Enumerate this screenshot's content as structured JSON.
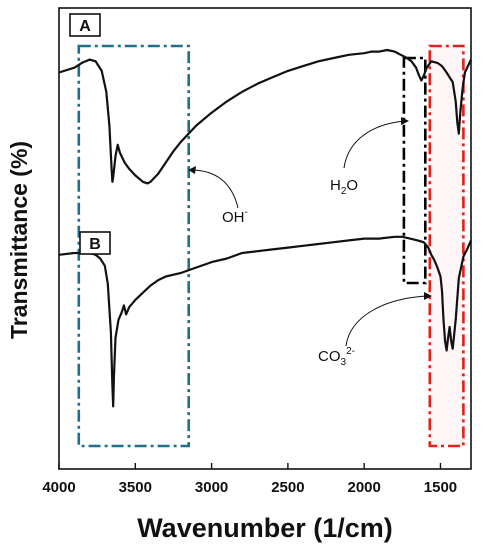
{
  "chart_data": {
    "type": "line",
    "xlabel": "Wavenumber (1/cm)",
    "ylabel": "Transmittance (%)",
    "xlim": [
      4000,
      1300
    ],
    "x_ticks": [
      4000,
      3500,
      3000,
      2500,
      2000,
      1500
    ],
    "y_ticks_shown": false,
    "grid": false,
    "series": [
      {
        "name": "A",
        "x": [
          4000,
          3900,
          3850,
          3800,
          3760,
          3720,
          3690,
          3670,
          3655,
          3650,
          3645,
          3630,
          3615,
          3600,
          3570,
          3540,
          3500,
          3450,
          3420,
          3400,
          3350,
          3300,
          3250,
          3200,
          3100,
          3000,
          2900,
          2800,
          2700,
          2600,
          2500,
          2400,
          2300,
          2200,
          2100,
          2000,
          1950,
          1900,
          1850,
          1800,
          1760,
          1720,
          1690,
          1660,
          1640,
          1625,
          1610,
          1590,
          1560,
          1520,
          1490,
          1460,
          1440,
          1420,
          1400,
          1390,
          1380,
          1370,
          1355,
          1340,
          1320,
          1300
        ],
        "values": [
          0.78,
          0.81,
          0.84,
          0.86,
          0.85,
          0.79,
          0.66,
          0.45,
          0.18,
          0.1,
          0.13,
          0.26,
          0.33,
          0.28,
          0.22,
          0.18,
          0.14,
          0.1,
          0.09,
          0.1,
          0.15,
          0.22,
          0.29,
          0.35,
          0.45,
          0.53,
          0.6,
          0.66,
          0.71,
          0.75,
          0.79,
          0.82,
          0.85,
          0.87,
          0.89,
          0.9,
          0.91,
          0.91,
          0.92,
          0.91,
          0.89,
          0.87,
          0.85,
          0.81,
          0.76,
          0.73,
          0.76,
          0.81,
          0.85,
          0.84,
          0.82,
          0.78,
          0.75,
          0.72,
          0.6,
          0.47,
          0.4,
          0.53,
          0.68,
          0.78,
          0.82,
          0.86
        ]
      },
      {
        "name": "B",
        "x": [
          4000,
          3900,
          3850,
          3800,
          3760,
          3730,
          3700,
          3680,
          3660,
          3650,
          3645,
          3640,
          3630,
          3610,
          3590,
          3575,
          3560,
          3540,
          3500,
          3450,
          3400,
          3350,
          3300,
          3250,
          3200,
          3100,
          3000,
          2900,
          2800,
          2700,
          2600,
          2500,
          2400,
          2300,
          2200,
          2100,
          2000,
          1900,
          1800,
          1750,
          1700,
          1650,
          1610,
          1580,
          1560,
          1540,
          1520,
          1500,
          1490,
          1480,
          1470,
          1460,
          1450,
          1440,
          1430,
          1420,
          1400,
          1380,
          1350,
          1320,
          1300
        ],
        "values": [
          0.98,
          0.99,
          0.99,
          0.99,
          0.98,
          0.96,
          0.92,
          0.82,
          0.55,
          0.25,
          0.14,
          0.3,
          0.52,
          0.62,
          0.66,
          0.7,
          0.65,
          0.69,
          0.73,
          0.77,
          0.81,
          0.84,
          0.86,
          0.87,
          0.88,
          0.91,
          0.94,
          0.96,
          0.99,
          1.0,
          1.01,
          1.02,
          1.03,
          1.04,
          1.05,
          1.06,
          1.07,
          1.07,
          1.08,
          1.08,
          1.07,
          1.06,
          1.05,
          1.02,
          0.98,
          0.95,
          0.91,
          0.86,
          0.78,
          0.62,
          0.5,
          0.45,
          0.52,
          0.58,
          0.5,
          0.46,
          0.62,
          0.85,
          0.97,
          1.02,
          1.06
        ]
      }
    ],
    "series_labels": [
      "A",
      "B"
    ],
    "annotations": {
      "oh": {
        "base": "OH",
        "sup": "-"
      },
      "h2o": {
        "pre": "H",
        "sub": "2",
        "post": "O"
      },
      "co3": {
        "pre": "CO",
        "sub": "3",
        "sup": "2-"
      }
    },
    "highlight_regions": [
      {
        "name": "OH- region",
        "x_from": 3870,
        "x_to": 3150,
        "color": "#1f6f8b"
      },
      {
        "name": "H2O region",
        "x_from": 1740,
        "x_to": 1600,
        "color": "#000000"
      },
      {
        "name": "CO3 2- region",
        "x_from": 1570,
        "x_to": 1350,
        "color": "#e0201b"
      }
    ]
  }
}
